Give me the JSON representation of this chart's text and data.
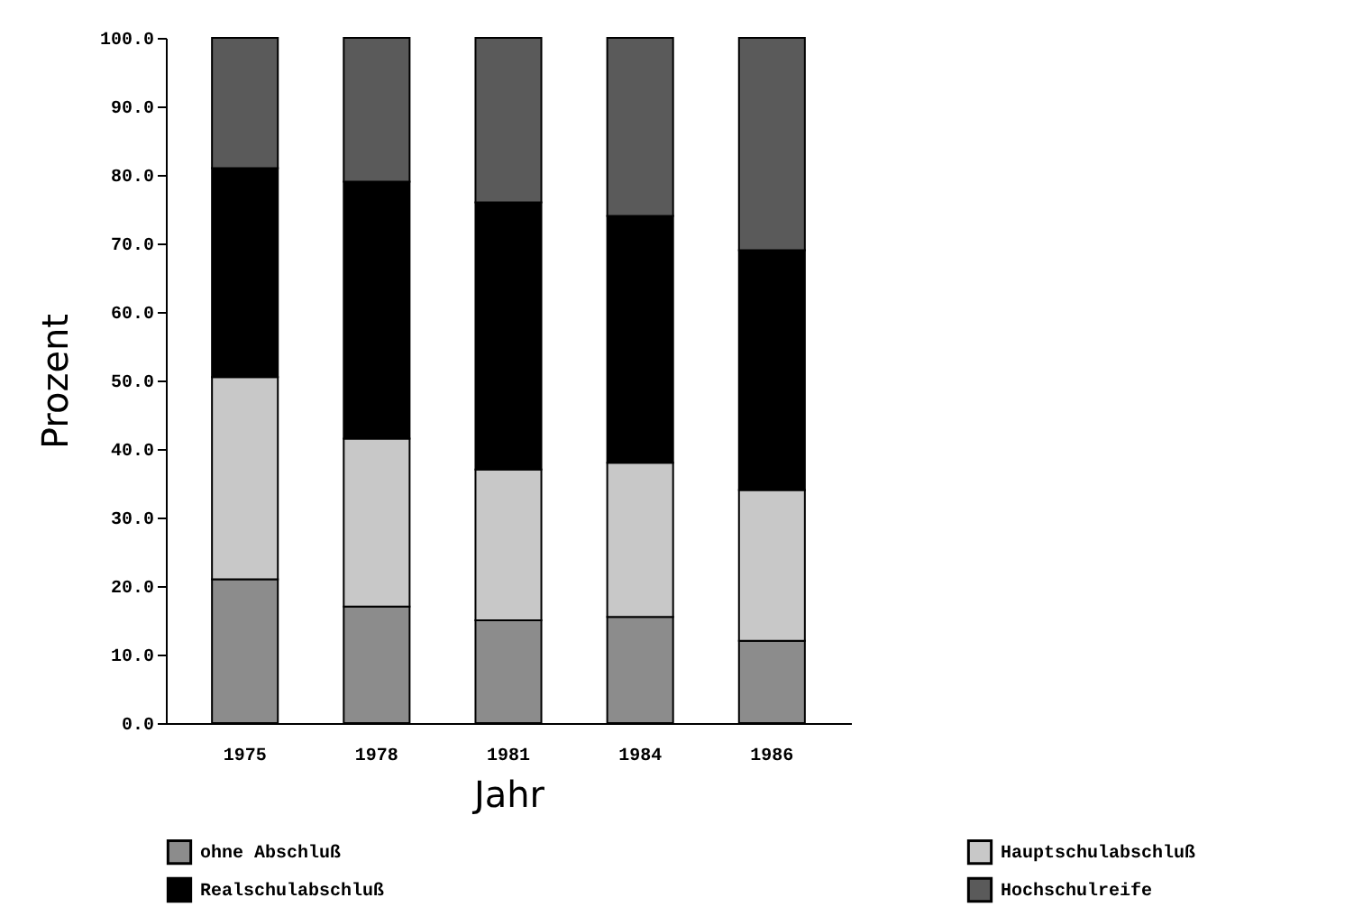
{
  "chart_data": {
    "type": "bar",
    "stacked": true,
    "xlabel": "Jahr",
    "ylabel": "Prozent",
    "categories": [
      "1975",
      "1978",
      "1981",
      "1984",
      "1986"
    ],
    "series": [
      {
        "name": "ohne Abschluß",
        "color": "#8c8c8c",
        "values": [
          21,
          17,
          15,
          15.5,
          12
        ]
      },
      {
        "name": "Hauptschulabschluß",
        "color": "#c8c8c8",
        "values": [
          29.5,
          24.5,
          22,
          22.5,
          22
        ]
      },
      {
        "name": "Realschulabschluß",
        "color": "#000000",
        "values": [
          30.5,
          37.5,
          39,
          36,
          35
        ]
      },
      {
        "name": "Hochschulreife",
        "color": "#5a5a5a",
        "values": [
          19,
          21,
          24,
          26,
          31
        ]
      }
    ],
    "ylim": [
      0,
      100
    ],
    "yticks": [
      {
        "value": 0,
        "label": "0.0"
      },
      {
        "value": 10,
        "label": "10.0"
      },
      {
        "value": 20,
        "label": "20.0"
      },
      {
        "value": 30,
        "label": "30.0"
      },
      {
        "value": 40,
        "label": "40.0"
      },
      {
        "value": 50,
        "label": "50.0"
      },
      {
        "value": 60,
        "label": "60.0"
      },
      {
        "value": 70,
        "label": "70.0"
      },
      {
        "value": 80,
        "label": "80.0"
      },
      {
        "value": 90,
        "label": "90.0"
      },
      {
        "value": 100,
        "label": "100.0"
      }
    ],
    "grid": false,
    "legend": "bottom"
  }
}
